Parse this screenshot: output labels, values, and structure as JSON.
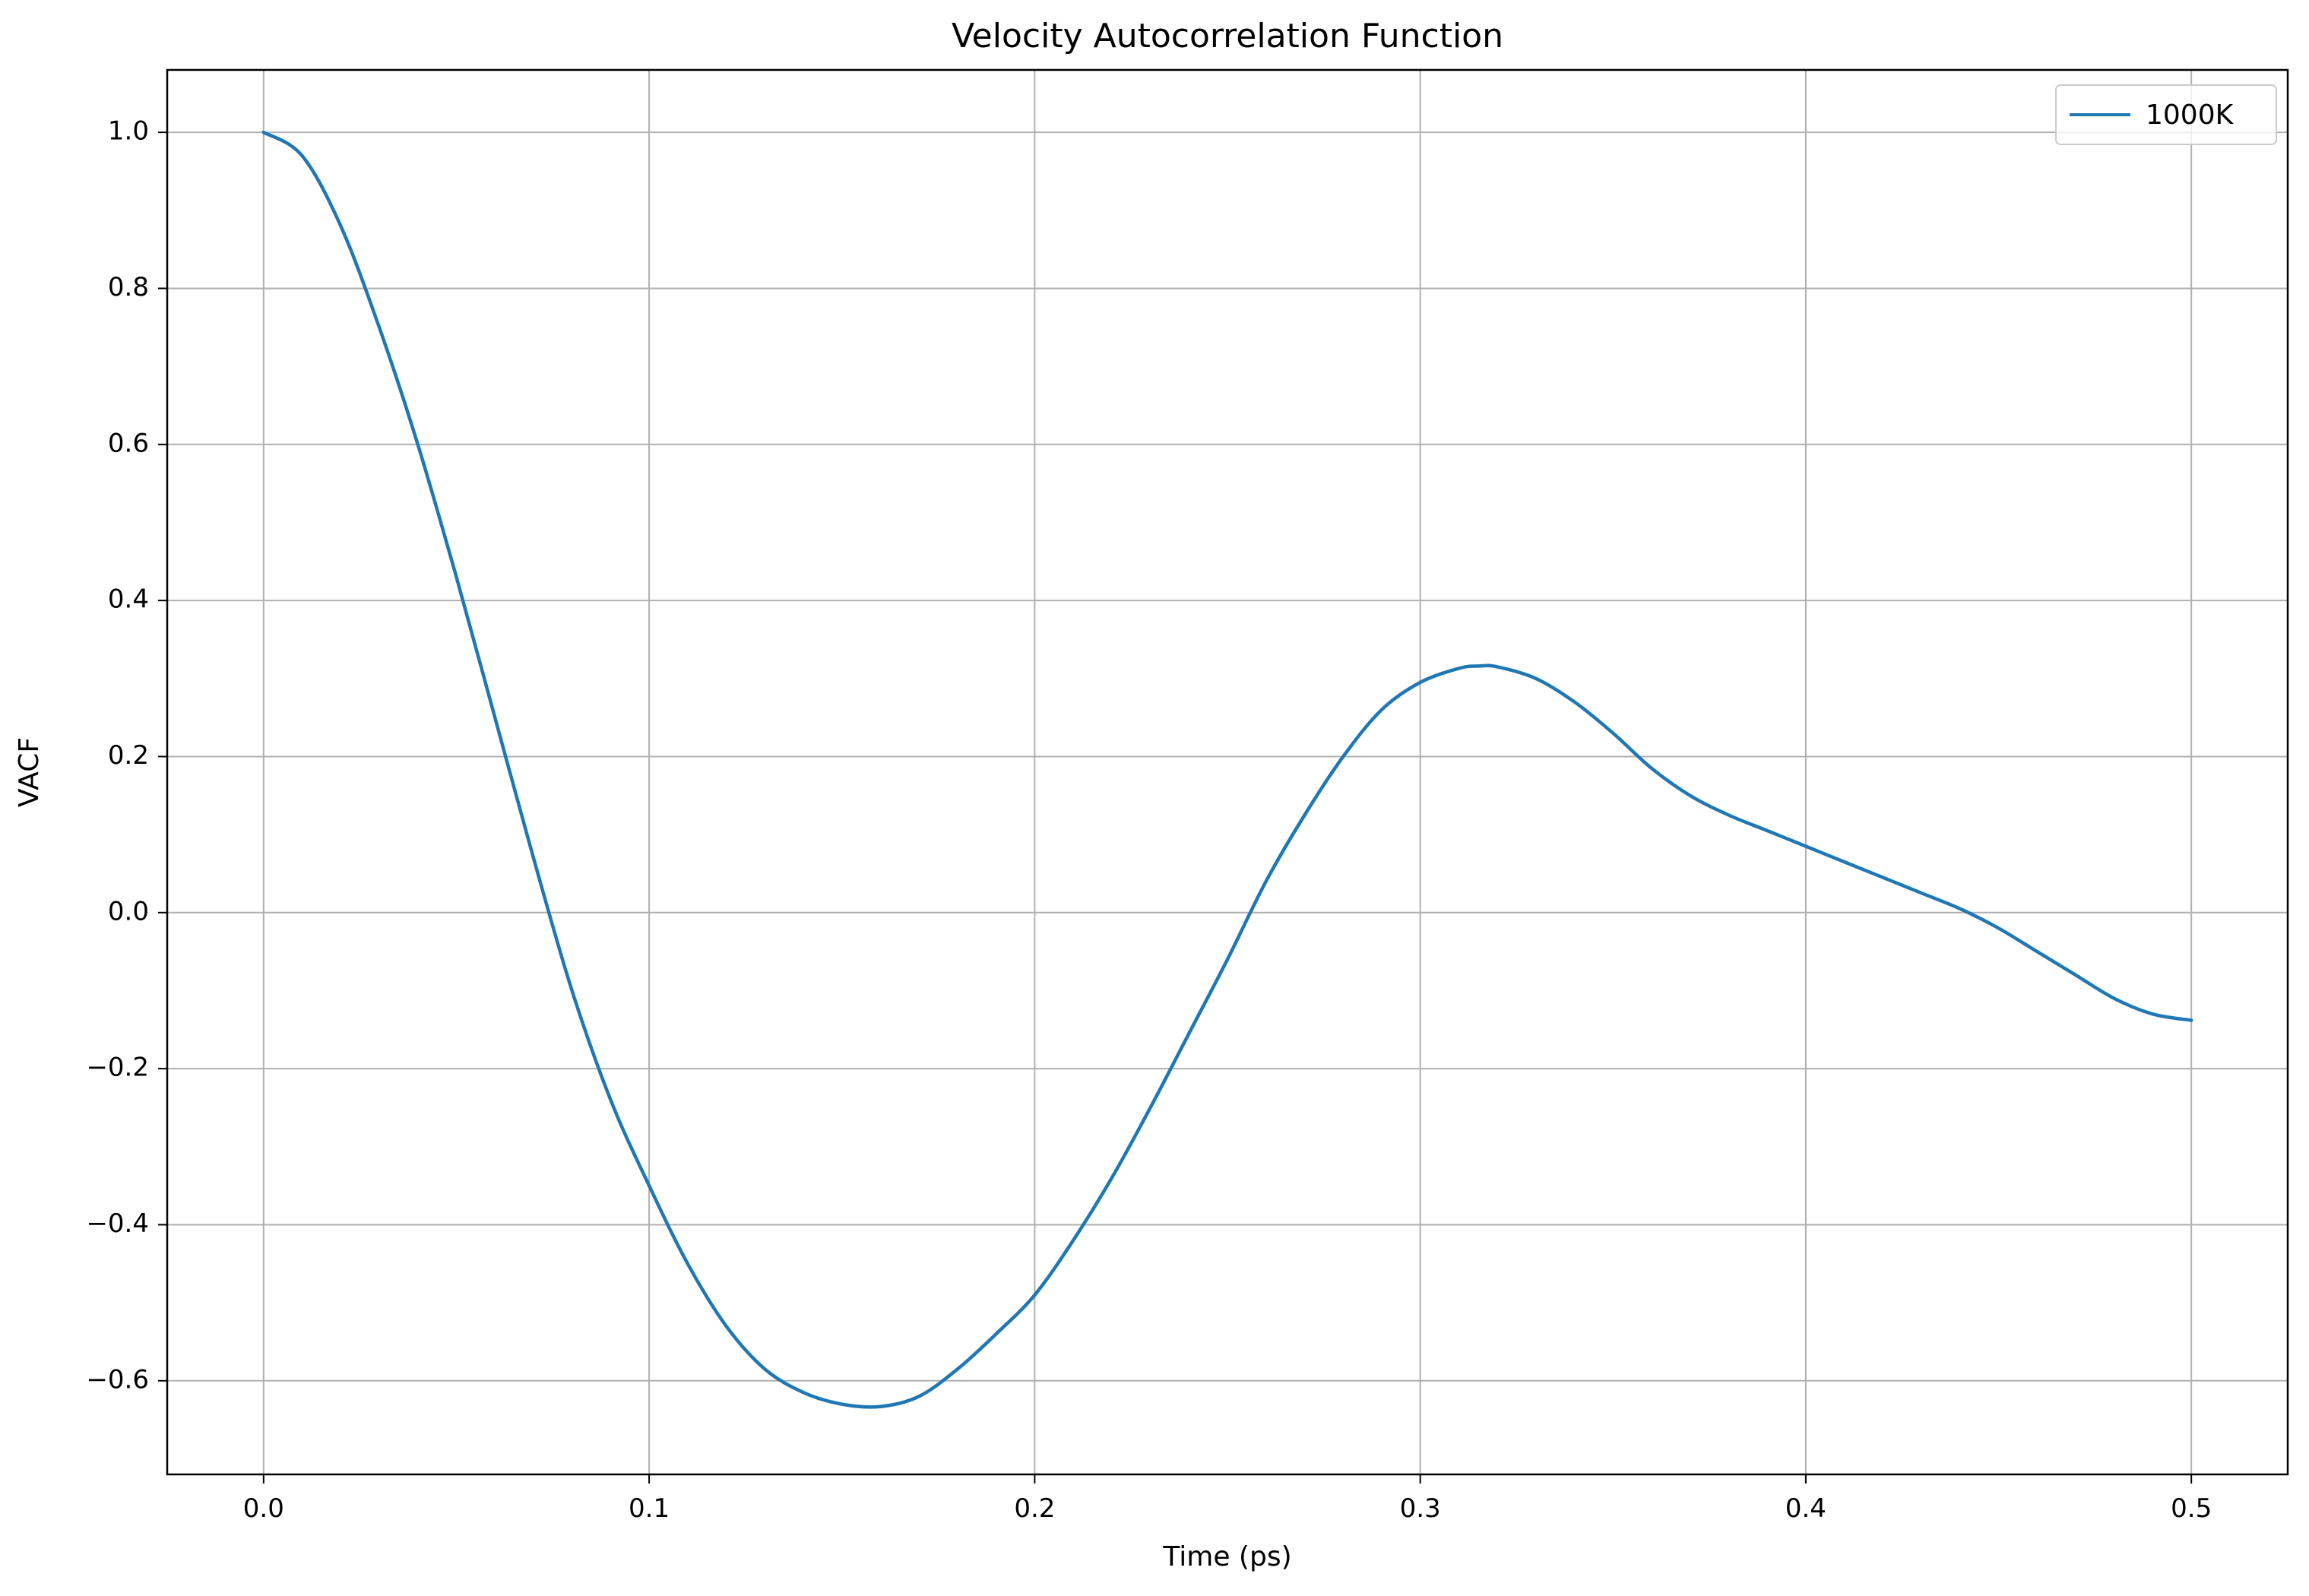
{
  "chart_data": {
    "type": "line",
    "title": "Velocity Autocorrelation Function",
    "xlabel": "Time (ps)",
    "ylabel": "VACF",
    "xlim": [
      -0.025,
      0.525
    ],
    "ylim": [
      -0.72,
      1.08
    ],
    "xticks": [
      0.0,
      0.1,
      0.2,
      0.3,
      0.4,
      0.5
    ],
    "xtick_labels": [
      "0.0",
      "0.1",
      "0.2",
      "0.3",
      "0.4",
      "0.5"
    ],
    "yticks": [
      -0.6,
      -0.4,
      -0.2,
      0.0,
      0.2,
      0.4,
      0.6,
      0.8,
      1.0
    ],
    "ytick_labels": [
      "−0.6",
      "−0.4",
      "−0.2",
      "0.0",
      "0.2",
      "0.4",
      "0.6",
      "0.8",
      "1.0"
    ],
    "grid": true,
    "legend_position": "top-right",
    "series": [
      {
        "name": "1000K",
        "color": "#1f77b4",
        "x": [
          0.0,
          0.01,
          0.02,
          0.03,
          0.04,
          0.05,
          0.06,
          0.07,
          0.08,
          0.09,
          0.1,
          0.11,
          0.12,
          0.13,
          0.14,
          0.15,
          0.16,
          0.17,
          0.18,
          0.19,
          0.2,
          0.21,
          0.22,
          0.23,
          0.24,
          0.25,
          0.26,
          0.27,
          0.28,
          0.29,
          0.3,
          0.31,
          0.315,
          0.32,
          0.33,
          0.34,
          0.35,
          0.36,
          0.37,
          0.38,
          0.39,
          0.4,
          0.41,
          0.42,
          0.43,
          0.44,
          0.45,
          0.46,
          0.47,
          0.48,
          0.49,
          0.5
        ],
        "y": [
          1.0,
          0.97,
          0.88,
          0.75,
          0.6,
          0.43,
          0.25,
          0.07,
          -0.1,
          -0.24,
          -0.35,
          -0.45,
          -0.53,
          -0.585,
          -0.615,
          -0.63,
          -0.633,
          -0.62,
          -0.585,
          -0.54,
          -0.49,
          -0.42,
          -0.34,
          -0.25,
          -0.155,
          -0.06,
          0.04,
          0.125,
          0.2,
          0.26,
          0.295,
          0.313,
          0.316,
          0.315,
          0.3,
          0.27,
          0.23,
          0.185,
          0.15,
          0.125,
          0.105,
          0.085,
          0.065,
          0.045,
          0.025,
          0.005,
          -0.02,
          -0.05,
          -0.08,
          -0.11,
          -0.13,
          -0.138
        ]
      }
    ]
  }
}
